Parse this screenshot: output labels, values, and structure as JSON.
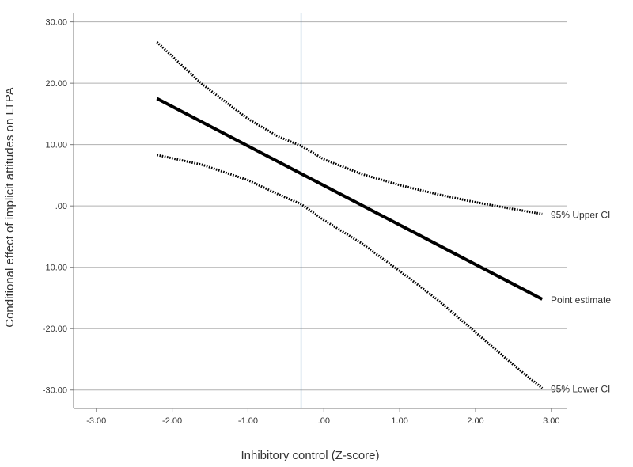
{
  "chart_data": {
    "type": "line",
    "title": "",
    "xlabel": "Inhibitory control (Z-score)",
    "ylabel": "Conditional effect of implicit attitudes on LTPA",
    "xlim": [
      -3.3,
      3.2
    ],
    "ylim": [
      -33,
      31.5
    ],
    "x_ticks": [
      -3,
      -2,
      -1,
      0,
      1,
      2,
      3
    ],
    "x_tick_labels": [
      "-3.00",
      "-2.00",
      "-1.00",
      ".00",
      "1.00",
      "2.00",
      "3.00"
    ],
    "y_ticks": [
      30,
      20,
      10,
      0,
      -10,
      -20,
      -30
    ],
    "y_tick_labels": [
      "30.00",
      "20.00",
      "10.00",
      ".00",
      "-10.00",
      "-20.00",
      "-30.00"
    ],
    "grid": "horizontal",
    "reference_line_x": -0.3,
    "series": [
      {
        "name": "95% Upper CI",
        "style": "dotted",
        "x": [
          -2.2,
          -1.6,
          -1.0,
          -0.6,
          -0.3,
          0.0,
          0.5,
          1.0,
          1.5,
          2.0,
          2.5,
          2.88
        ],
        "y": [
          26.7,
          19.8,
          14.2,
          11.3,
          9.8,
          7.6,
          5.2,
          3.4,
          1.9,
          0.6,
          -0.5,
          -1.3
        ]
      },
      {
        "name": "Point estimate",
        "style": "solid",
        "x": [
          -2.2,
          2.88
        ],
        "y": [
          17.5,
          -15.2
        ]
      },
      {
        "name": "95% Lower CI",
        "style": "dotted",
        "x": [
          -2.2,
          -1.6,
          -1.0,
          -0.6,
          -0.3,
          0.0,
          0.5,
          1.0,
          1.5,
          2.0,
          2.5,
          2.88
        ],
        "y": [
          8.3,
          6.7,
          4.2,
          1.9,
          0.3,
          -2.3,
          -6.1,
          -10.6,
          -15.3,
          -20.6,
          -25.9,
          -29.7
        ]
      }
    ],
    "colors": {
      "series_line": "#000000",
      "grid": "#b0b0b0",
      "axis": "#7a7a7a",
      "reference_line": "#5b8bb5",
      "text": "#333333"
    }
  }
}
